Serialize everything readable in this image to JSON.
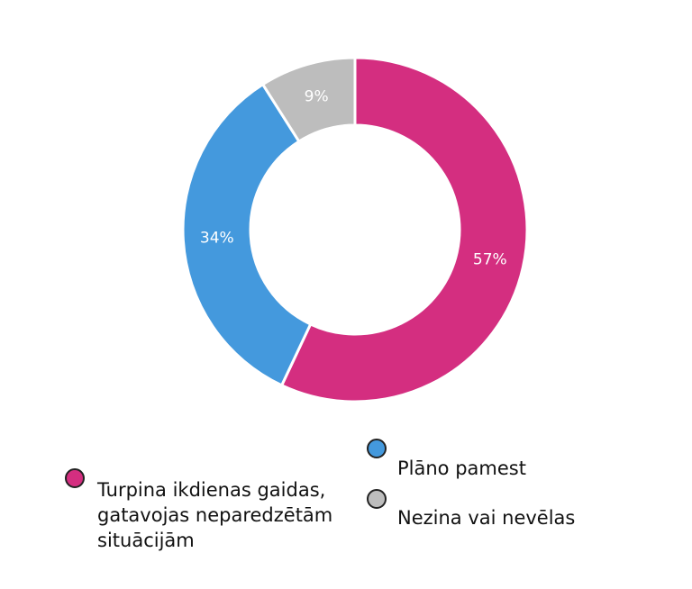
{
  "chart_data": {
    "type": "pie",
    "donut": true,
    "legend_position": "bottom",
    "slices": [
      {
        "label": "Turpina ikdienas gaidas, gatavojas neparedzētām situācijām",
        "value": 57,
        "display": "57%",
        "color": "#d42e80"
      },
      {
        "label": "Plāno pamest",
        "value": 34,
        "display": "34%",
        "color": "#4499dd"
      },
      {
        "label": "Nezina vai nevēlas",
        "value": 9,
        "display": "9%",
        "color": "#bdbdbd"
      }
    ]
  }
}
